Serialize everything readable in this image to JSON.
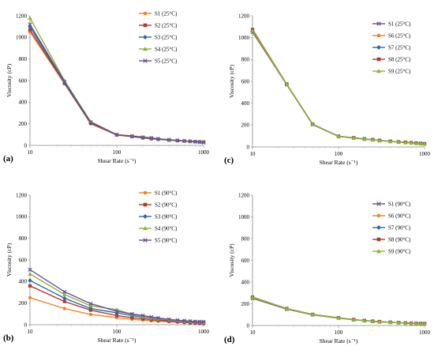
{
  "chart_data": [
    {
      "panel_label": "(a)",
      "type": "line",
      "xscale": "log",
      "xlabel": "Shear Rate (s⁻¹)",
      "ylabel": "Viscosity (cP)",
      "xlim": [
        10,
        1000
      ],
      "ylim": [
        0,
        1200
      ],
      "xticks": [
        "10",
        "100",
        "1000"
      ],
      "yticks": [
        "0",
        "200",
        "400",
        "600",
        "800",
        "1000",
        "1200"
      ],
      "grid": false,
      "legend": "top-right",
      "x": [
        10,
        25,
        50,
        100,
        150,
        200,
        250,
        300,
        400,
        500,
        600,
        700,
        800,
        900,
        1000
      ],
      "series": [
        {
          "name": "S1 (25°C)",
          "color": "#E8862A",
          "marker": "circle",
          "values": [
            1050,
            570,
            200,
            95,
            80,
            68,
            60,
            55,
            48,
            43,
            39,
            36,
            33,
            31,
            28
          ]
        },
        {
          "name": "S2 (25°C)",
          "color": "#B03A2E",
          "marker": "square",
          "values": [
            1070,
            575,
            205,
            97,
            82,
            70,
            62,
            57,
            50,
            44,
            40,
            37,
            34,
            32,
            30
          ]
        },
        {
          "name": "S3 (25°C)",
          "color": "#2E6BA6",
          "marker": "diamond",
          "values": [
            1100,
            580,
            210,
            98,
            84,
            72,
            65,
            58,
            50,
            45,
            41,
            38,
            35,
            33,
            31
          ]
        },
        {
          "name": "S4 (25°C)",
          "color": "#8DB33A",
          "marker": "triangle",
          "values": [
            1180,
            600,
            220,
            100,
            88,
            78,
            70,
            63,
            54,
            47,
            42,
            38,
            34,
            32,
            29
          ]
        },
        {
          "name": "S5 (25°C)",
          "color": "#6B4E9B",
          "marker": "x",
          "values": [
            1120,
            590,
            215,
            99,
            86,
            75,
            68,
            60,
            52,
            46,
            41,
            37,
            34,
            31,
            28
          ]
        }
      ]
    },
    {
      "panel_label": "(c)",
      "type": "line",
      "xscale": "log",
      "xlabel": "Shear Rate (s⁻¹)",
      "ylabel": "Viscosity (cP)",
      "xlim": [
        10,
        1000
      ],
      "ylim": [
        0,
        1200
      ],
      "xticks": [
        "10",
        "100",
        "1000"
      ],
      "yticks": [
        "0",
        "200",
        "400",
        "600",
        "800",
        "1000",
        "1200"
      ],
      "grid": false,
      "legend": "top-right",
      "x": [
        10,
        25,
        50,
        100,
        150,
        200,
        250,
        300,
        400,
        500,
        600,
        700,
        800,
        900,
        1000
      ],
      "series": [
        {
          "name": "S1 (25°C)",
          "color": "#6B4E9B",
          "marker": "x",
          "values": [
            1050,
            570,
            205,
            96,
            82,
            72,
            65,
            58,
            50,
            45,
            41,
            37,
            34,
            31,
            28
          ]
        },
        {
          "name": "S6 (25°C)",
          "color": "#E8862A",
          "marker": "circle",
          "values": [
            1055,
            572,
            207,
            97,
            83,
            73,
            66,
            59,
            51,
            45,
            41,
            37,
            34,
            31,
            28
          ]
        },
        {
          "name": "S7 (25°C)",
          "color": "#2E6BA6",
          "marker": "diamond",
          "values": [
            1060,
            574,
            208,
            97,
            83,
            73,
            66,
            59,
            51,
            46,
            42,
            38,
            35,
            32,
            29
          ]
        },
        {
          "name": "S8 (25°C)",
          "color": "#B03A2E",
          "marker": "square",
          "values": [
            1075,
            576,
            209,
            98,
            84,
            74,
            67,
            60,
            52,
            46,
            42,
            38,
            35,
            32,
            29
          ]
        },
        {
          "name": "S9 (25°C)",
          "color": "#8DB33A",
          "marker": "triangle",
          "values": [
            1065,
            575,
            208,
            98,
            84,
            74,
            66,
            59,
            51,
            46,
            41,
            37,
            34,
            31,
            28
          ]
        }
      ]
    },
    {
      "panel_label": "(b)",
      "type": "line",
      "xscale": "log",
      "xlabel": "Shear Rate (s⁻¹)",
      "ylabel": "Viscosity (cP)",
      "xlim": [
        10,
        1000
      ],
      "ylim": [
        0,
        1200
      ],
      "xticks": [
        "10",
        "100",
        "1000"
      ],
      "yticks": [
        "0",
        "200",
        "400",
        "600",
        "800",
        "1000",
        "1200"
      ],
      "grid": false,
      "legend": "top-right",
      "x": [
        10,
        25,
        50,
        100,
        150,
        200,
        250,
        300,
        400,
        500,
        600,
        700,
        800,
        900,
        1000
      ],
      "series": [
        {
          "name": "S1 (90°C)",
          "color": "#E8862A",
          "marker": "circle",
          "values": [
            250,
            150,
            95,
            65,
            50,
            42,
            36,
            32,
            27,
            24,
            21,
            19,
            17,
            16,
            15
          ]
        },
        {
          "name": "S2 (90°C)",
          "color": "#B03A2E",
          "marker": "square",
          "values": [
            360,
            215,
            135,
            85,
            65,
            55,
            47,
            41,
            33,
            27,
            22,
            18,
            15,
            13,
            12
          ]
        },
        {
          "name": "S3 (90°C)",
          "color": "#2E6BA6",
          "marker": "diamond",
          "values": [
            410,
            245,
            150,
            110,
            85,
            70,
            60,
            52,
            42,
            36,
            32,
            29,
            27,
            25,
            24
          ]
        },
        {
          "name": "S4 (90°C)",
          "color": "#8DB33A",
          "marker": "triangle",
          "values": [
            470,
            280,
            175,
            140,
            95,
            75,
            63,
            55,
            45,
            38,
            33,
            30,
            27,
            25,
            23
          ]
        },
        {
          "name": "S5 (90°C)",
          "color": "#6B4E9B",
          "marker": "x",
          "values": [
            510,
            305,
            195,
            125,
            100,
            85,
            72,
            63,
            50,
            42,
            37,
            33,
            30,
            28,
            26
          ]
        }
      ]
    },
    {
      "panel_label": "(d)",
      "type": "line",
      "xscale": "log",
      "xlabel": "Shear Rate (s⁻¹)",
      "ylabel": "Viscosity (cP)",
      "xlim": [
        10,
        1000
      ],
      "ylim": [
        0,
        1200
      ],
      "xticks": [
        "10",
        "100",
        "1000"
      ],
      "yticks": [
        "0",
        "200",
        "400",
        "600",
        "800",
        "1000",
        "1200"
      ],
      "grid": false,
      "legend": "top-right",
      "x": [
        10,
        25,
        50,
        100,
        150,
        200,
        250,
        300,
        400,
        500,
        600,
        700,
        800,
        900,
        1000
      ],
      "series": [
        {
          "name": "S1 (90°C)",
          "color": "#6B4E9B",
          "marker": "x",
          "values": [
            250,
            150,
            98,
            68,
            52,
            44,
            38,
            34,
            29,
            25,
            22,
            20,
            18,
            17,
            16
          ]
        },
        {
          "name": "S6 (90°C)",
          "color": "#E8862A",
          "marker": "circle",
          "values": [
            255,
            152,
            99,
            69,
            53,
            45,
            39,
            34,
            29,
            25,
            23,
            21,
            19,
            18,
            17
          ]
        },
        {
          "name": "S7 (90°C)",
          "color": "#2E6BA6",
          "marker": "diamond",
          "values": [
            258,
            154,
            100,
            70,
            54,
            45,
            39,
            35,
            30,
            26,
            23,
            21,
            19,
            18,
            17
          ]
        },
        {
          "name": "S8 (90°C)",
          "color": "#B03A2E",
          "marker": "square",
          "values": [
            262,
            156,
            102,
            71,
            55,
            46,
            40,
            35,
            30,
            26,
            23,
            21,
            19,
            18,
            17
          ]
        },
        {
          "name": "S9 (90°C)",
          "color": "#8DB33A",
          "marker": "triangle",
          "values": [
            260,
            155,
            101,
            70,
            54,
            45,
            39,
            35,
            30,
            26,
            23,
            21,
            19,
            18,
            17
          ]
        }
      ]
    }
  ]
}
